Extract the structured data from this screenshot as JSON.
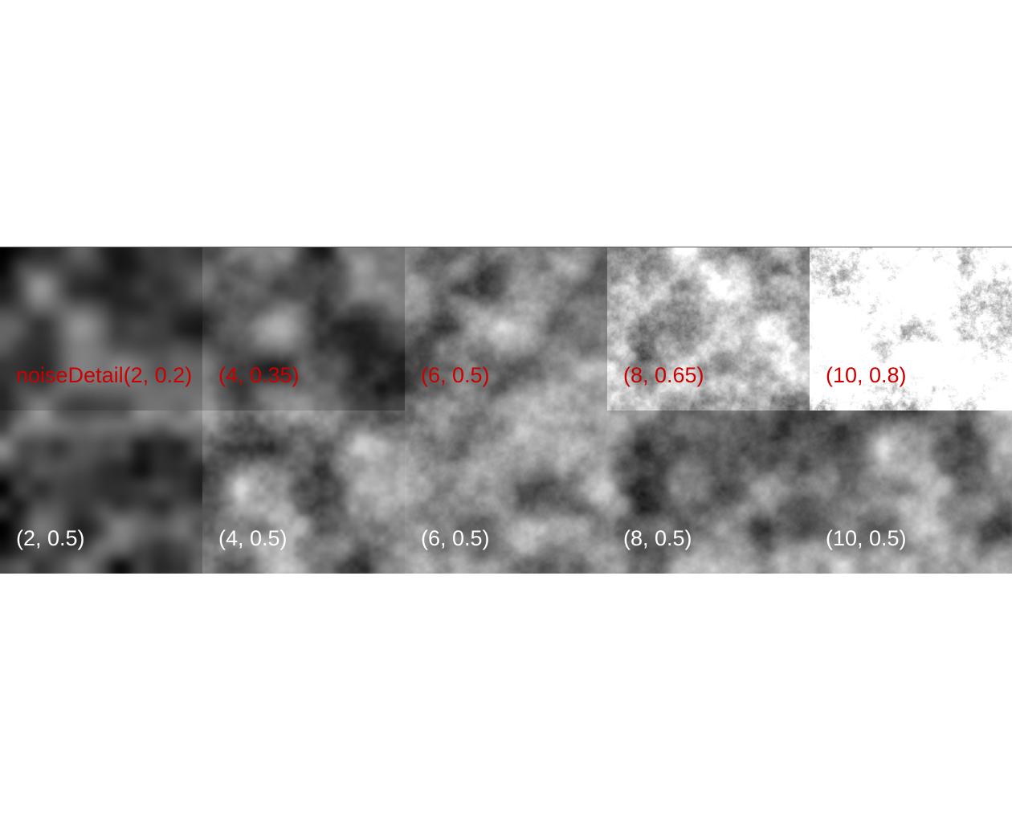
{
  "label_colors": {
    "top_row": "#cc0000",
    "bottom_row": "#ffffff"
  },
  "rows": {
    "top": [
      {
        "label": "noiseDetail(2, 0.2)",
        "octaves": 2,
        "falloff": 0.2
      },
      {
        "label": "(4, 0.35)",
        "octaves": 4,
        "falloff": 0.35
      },
      {
        "label": "(6, 0.5)",
        "octaves": 6,
        "falloff": 0.5
      },
      {
        "label": "(8, 0.65)",
        "octaves": 8,
        "falloff": 0.65
      },
      {
        "label": "(10, 0.8)",
        "octaves": 10,
        "falloff": 0.8
      }
    ],
    "bottom": [
      {
        "label": "(2, 0.5)",
        "octaves": 2,
        "falloff": 0.5
      },
      {
        "label": "(4, 0.5)",
        "octaves": 4,
        "falloff": 0.5
      },
      {
        "label": "(6, 0.5)",
        "octaves": 6,
        "falloff": 0.5
      },
      {
        "label": "(8, 0.5)",
        "octaves": 8,
        "falloff": 0.5
      },
      {
        "label": "(10, 0.5)",
        "octaves": 10,
        "falloff": 0.5
      }
    ]
  }
}
